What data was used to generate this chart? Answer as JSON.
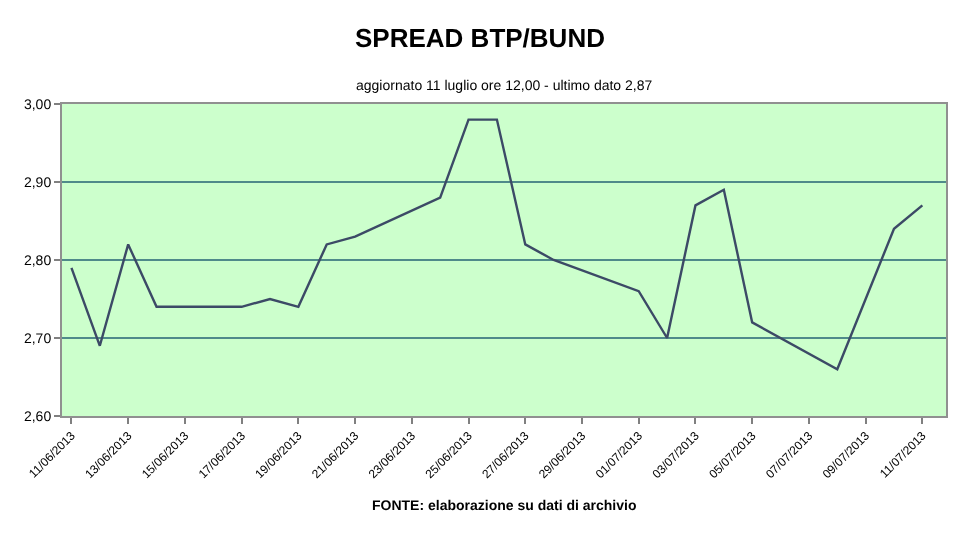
{
  "chart_data": {
    "type": "line",
    "title": "SPREAD BTP/BUND",
    "subtitle": "aggiornato 11 luglio ore 12,00 - ultimo dato 2,87",
    "annotations": [
      "FONTE: elaborazione su dati di archivio"
    ],
    "x": [
      "2013-06-11",
      "2013-06-12",
      "2013-06-13",
      "2013-06-14",
      "2013-06-17",
      "2013-06-18",
      "2013-06-19",
      "2013-06-20",
      "2013-06-21",
      "2013-06-24",
      "2013-06-25",
      "2013-06-26",
      "2013-06-27",
      "2013-06-28",
      "2013-07-01",
      "2013-07-02",
      "2013-07-03",
      "2013-07-04",
      "2013-07-05",
      "2013-07-08",
      "2013-07-10",
      "2013-07-11"
    ],
    "series": [
      {
        "color": "#3c4a66",
        "values": [
          2.79,
          2.69,
          2.82,
          2.74,
          2.74,
          2.75,
          2.74,
          2.82,
          2.83,
          2.88,
          2.98,
          2.98,
          2.82,
          2.8,
          2.76,
          2.7,
          2.87,
          2.89,
          2.72,
          2.66,
          2.84,
          2.87
        ]
      }
    ],
    "xlim": [
      "2013-06-10T16:00",
      "2013-07-11T20:00"
    ],
    "xticks": [
      {
        "value": "2013-06-11",
        "label": "11/06/2013"
      },
      {
        "value": "2013-06-13",
        "label": "13/06/2013"
      },
      {
        "value": "2013-06-15",
        "label": "15/06/2013"
      },
      {
        "value": "2013-06-17",
        "label": "17/06/2013"
      },
      {
        "value": "2013-06-19",
        "label": "19/06/2013"
      },
      {
        "value": "2013-06-21",
        "label": "21/06/2013"
      },
      {
        "value": "2013-06-23",
        "label": "23/06/2013"
      },
      {
        "value": "2013-06-25",
        "label": "25/06/2013"
      },
      {
        "value": "2013-06-27",
        "label": "27/06/2013"
      },
      {
        "value": "2013-06-29",
        "label": "29/06/2013"
      },
      {
        "value": "2013-07-01",
        "label": "01/07/2013"
      },
      {
        "value": "2013-07-03",
        "label": "03/07/2013"
      },
      {
        "value": "2013-07-05",
        "label": "05/07/2013"
      },
      {
        "value": "2013-07-07",
        "label": "07/07/2013"
      },
      {
        "value": "2013-07-09",
        "label": "09/07/2013"
      },
      {
        "value": "2013-07-11",
        "label": "11/07/2013"
      }
    ],
    "ylim": [
      2.6,
      3.0
    ],
    "yticks": [
      {
        "value": 2.6,
        "label": "2,60"
      },
      {
        "value": 2.7,
        "label": "2,70"
      },
      {
        "value": 2.8,
        "label": "2,80"
      },
      {
        "value": 2.9,
        "label": "2,90"
      },
      {
        "value": 3.0,
        "label": "3,00"
      }
    ],
    "grid": "y",
    "marker": "none",
    "line_style": "solid"
  }
}
